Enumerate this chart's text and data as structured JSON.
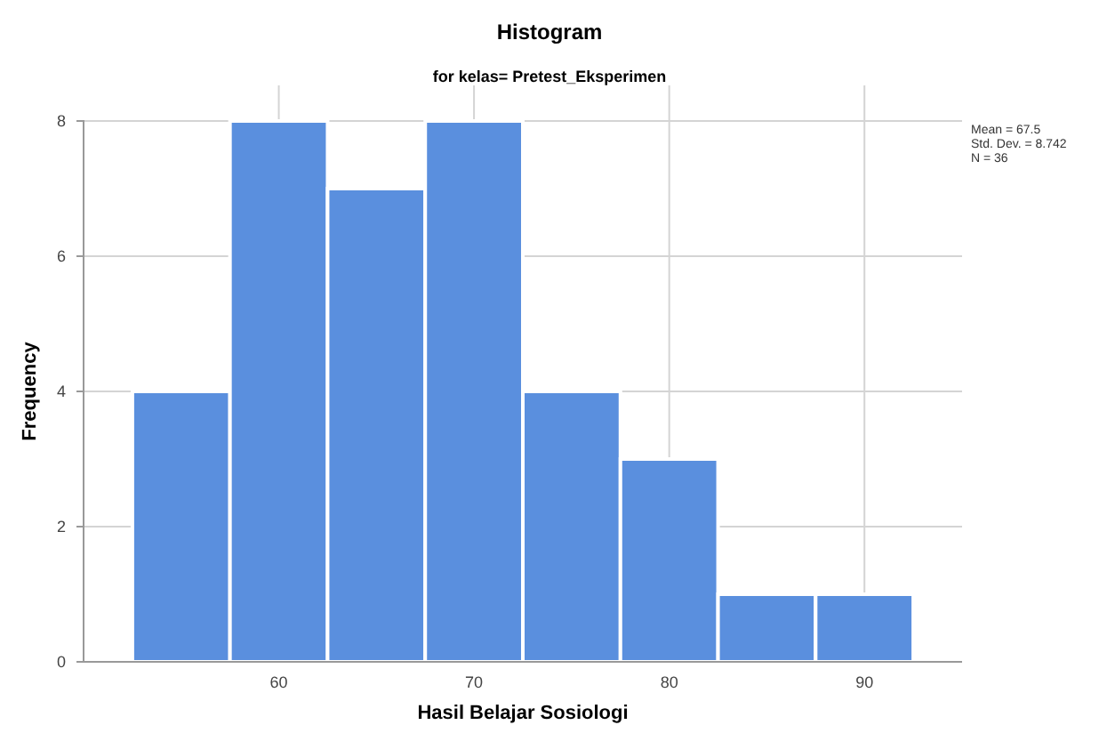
{
  "chart_data": {
    "type": "histogram",
    "title": "Histogram",
    "subtitle": "for kelas= Pretest_Eksperimen",
    "xlabel": "Hasil Belajar Sosiologi",
    "ylabel": "Frequency",
    "bins": [
      52.5,
      57.5,
      62.5,
      67.5,
      72.5,
      77.5,
      82.5,
      87.5,
      92.5
    ],
    "values": [
      4,
      8,
      7,
      8,
      4,
      3,
      1,
      1
    ],
    "color": "#5a8fde",
    "xlim": [
      50,
      95
    ],
    "xticks": [
      60,
      70,
      80,
      90
    ],
    "ylim": [
      0,
      8
    ],
    "yticks": [
      0,
      2,
      4,
      6,
      8
    ],
    "grid": true,
    "annotations": [
      "Mean = 67.5",
      "Std. Dev. = 8.742",
      "N = 36"
    ]
  }
}
